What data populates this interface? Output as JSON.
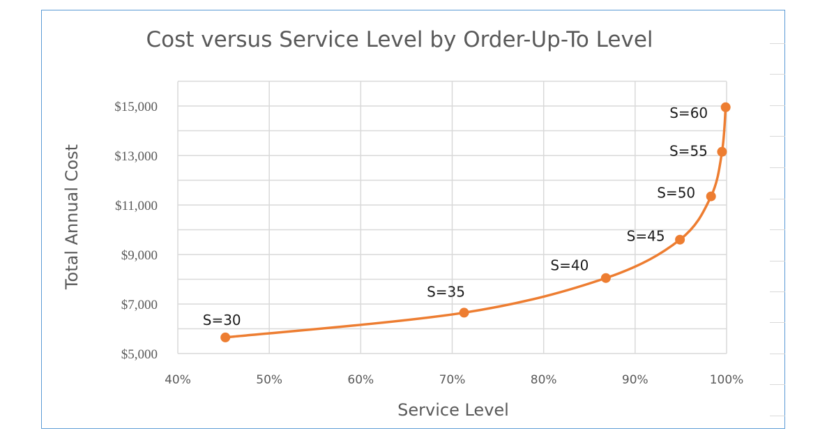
{
  "chart_data": {
    "type": "scatter",
    "title": "Cost versus Service Level by Order-Up-To Level",
    "xlabel": "Service Level",
    "ylabel": "Total Annual Cost",
    "xlim": [
      0.4,
      1.0
    ],
    "ylim": [
      5000,
      16000
    ],
    "x_ticks": [
      "40%",
      "50%",
      "60%",
      "70%",
      "80%",
      "90%",
      "100%"
    ],
    "y_ticks": [
      "$5,000",
      "$7,000",
      "$9,000",
      "$11,000",
      "$13,000",
      "$15,000"
    ],
    "grid": true,
    "line_color": "#ed7d31",
    "points": [
      {
        "label": "S=30",
        "x": 0.452,
        "y": 5650
      },
      {
        "label": "S=35",
        "x": 0.713,
        "y": 6650
      },
      {
        "label": "S=40",
        "x": 0.868,
        "y": 8050
      },
      {
        "label": "S=45",
        "x": 0.949,
        "y": 9600
      },
      {
        "label": "S=50",
        "x": 0.983,
        "y": 11350
      },
      {
        "label": "S=55",
        "x": 0.995,
        "y": 13150
      },
      {
        "label": "S=60",
        "x": 0.999,
        "y": 14950
      }
    ]
  }
}
